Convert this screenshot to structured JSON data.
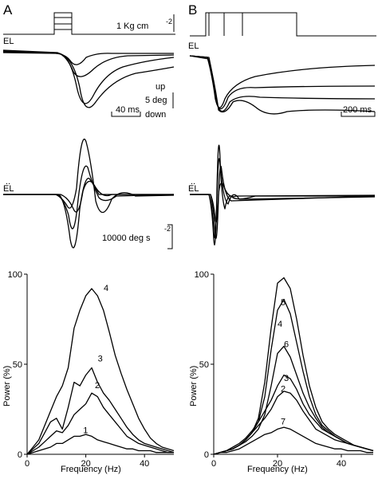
{
  "panels": {
    "A": {
      "letter": "A"
    },
    "B": {
      "letter": "B"
    }
  },
  "labels": {
    "force_scale": "1 Kg cm",
    "force_scale_exp": "-2",
    "el": "EL",
    "el_dot": "EL",
    "up": "up",
    "down": "down",
    "deg_scale": "5 deg",
    "time_scale_a": "40 ms",
    "time_scale_b": "200 ms",
    "accel_scale": "10000 deg s",
    "accel_scale_exp": "-2"
  },
  "chart_data": [
    {
      "type": "line",
      "panel": "A",
      "xlabel": "Frequency (Hz)",
      "ylabel": "Power (%)",
      "xlim": [
        0,
        50
      ],
      "ylim": [
        0,
        100
      ],
      "xticks": [
        0,
        20,
        40
      ],
      "yticks": [
        0,
        50,
        100
      ],
      "x": [
        0,
        2,
        4,
        6,
        8,
        10,
        12,
        14,
        16,
        18,
        20,
        22,
        24,
        26,
        28,
        30,
        32,
        34,
        36,
        38,
        40,
        42,
        44,
        46,
        48,
        50
      ],
      "series": [
        {
          "name": "1",
          "values": [
            0,
            1,
            2,
            3,
            4,
            6,
            6,
            8,
            10,
            10,
            11,
            10,
            8,
            7,
            6,
            5,
            4,
            3,
            3,
            2,
            2,
            2,
            1,
            1,
            1,
            1
          ]
        },
        {
          "name": "2",
          "values": [
            0,
            2,
            4,
            7,
            10,
            13,
            12,
            16,
            22,
            25,
            28,
            34,
            32,
            26,
            22,
            18,
            14,
            10,
            8,
            6,
            5,
            4,
            3,
            2,
            1,
            1
          ]
        },
        {
          "name": "3",
          "values": [
            0,
            3,
            6,
            12,
            18,
            20,
            14,
            26,
            40,
            38,
            44,
            48,
            40,
            34,
            30,
            25,
            20,
            15,
            11,
            8,
            6,
            5,
            4,
            3,
            2,
            1
          ]
        },
        {
          "name": "4",
          "values": [
            0,
            4,
            8,
            16,
            24,
            32,
            38,
            48,
            70,
            80,
            88,
            92,
            88,
            80,
            68,
            55,
            45,
            36,
            28,
            20,
            14,
            9,
            6,
            4,
            3,
            2
          ]
        }
      ],
      "annotations": [
        "1",
        "2",
        "3",
        "4"
      ]
    },
    {
      "type": "line",
      "panel": "B",
      "xlabel": "Frequency (Hz)",
      "ylabel": "Power (%)",
      "xlim": [
        0,
        50
      ],
      "ylim": [
        0,
        100
      ],
      "xticks": [
        0,
        20,
        40
      ],
      "yticks": [
        0,
        50,
        100
      ],
      "x": [
        0,
        2,
        4,
        6,
        8,
        10,
        12,
        14,
        16,
        18,
        20,
        22,
        24,
        26,
        28,
        30,
        32,
        34,
        36,
        38,
        40,
        42,
        44,
        46,
        48,
        50
      ],
      "series": [
        {
          "name": "2",
          "values": [
            0,
            1,
            2,
            3,
            5,
            8,
            12,
            16,
            20,
            25,
            32,
            35,
            34,
            30,
            24,
            19,
            14,
            12,
            10,
            8,
            7,
            6,
            5,
            4,
            3,
            2
          ]
        },
        {
          "name": "3",
          "values": [
            0,
            1,
            2,
            4,
            6,
            9,
            13,
            18,
            24,
            30,
            38,
            44,
            42,
            36,
            28,
            22,
            18,
            14,
            12,
            10,
            8,
            6,
            5,
            4,
            3,
            2
          ]
        },
        {
          "name": "4",
          "values": [
            0,
            1,
            2,
            3,
            5,
            8,
            12,
            20,
            40,
            70,
            95,
            98,
            92,
            75,
            55,
            38,
            26,
            18,
            14,
            11,
            9,
            7,
            5,
            4,
            3,
            2
          ]
        },
        {
          "name": "5",
          "values": [
            0,
            1,
            2,
            3,
            5,
            8,
            12,
            18,
            32,
            58,
            80,
            86,
            78,
            62,
            46,
            32,
            22,
            16,
            13,
            10,
            8,
            6,
            5,
            4,
            3,
            2
          ]
        },
        {
          "name": "6",
          "values": [
            0,
            1,
            2,
            3,
            5,
            7,
            10,
            14,
            22,
            38,
            56,
            60,
            54,
            44,
            34,
            26,
            20,
            15,
            12,
            10,
            8,
            6,
            5,
            4,
            3,
            2
          ]
        },
        {
          "name": "7",
          "values": [
            0,
            1,
            1,
            2,
            3,
            5,
            7,
            9,
            11,
            12,
            14,
            15,
            14,
            12,
            10,
            8,
            6,
            5,
            4,
            3,
            3,
            2,
            2,
            2,
            1,
            1
          ]
        }
      ],
      "annotations": [
        "2",
        "3",
        "4",
        "5",
        "6",
        "7"
      ]
    }
  ]
}
